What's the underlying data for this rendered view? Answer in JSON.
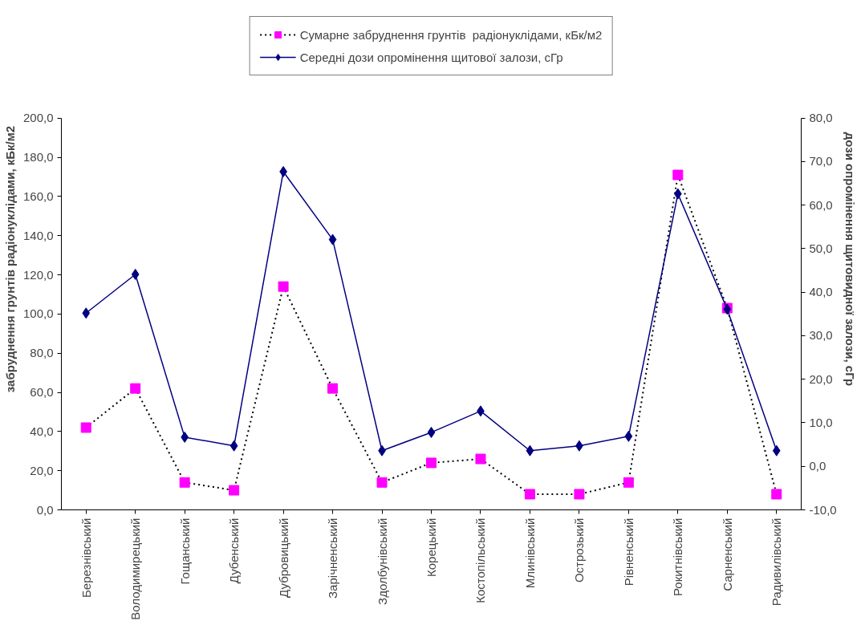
{
  "chart_data": {
    "type": "line",
    "ylabel": "забруднення грунтів радіонуклідами, кБк/м2",
    "y2label": "дози опромінення щитовидної залози, сГр",
    "categories": [
      "Березнівський",
      "Володимирецький",
      "Гощанський",
      "Дубенський",
      "Дубровицький",
      "Зарічненський",
      "Здолбунівський",
      "Корецький",
      "Костопільський",
      "Млинівський",
      "Острозький",
      "Рівненський",
      "Рокитнівський",
      "Сарненський",
      "Радивилівський"
    ],
    "series": [
      {
        "name": "Сумарне забруднення грунтів  радіонуклідами, кБк/м2",
        "color": "#ff00ff",
        "marker": "square",
        "line_style": "dotted",
        "values": [
          42,
          62,
          14,
          10,
          114,
          62,
          14,
          24,
          26,
          8,
          8,
          14,
          171,
          103,
          8
        ]
      },
      {
        "name": "Середні дози опромінення щитової залози, сГр",
        "color": "#000080",
        "marker": "diamond",
        "line_style": "solid",
        "axis": "y2",
        "values": [
          35.2,
          44.1,
          6.7,
          4.7,
          67.7,
          52.1,
          3.6,
          7.8,
          12.7,
          3.6,
          4.7,
          6.9,
          62.6,
          36.1,
          3.6
        ]
      }
    ],
    "ylim": [
      0,
      200
    ],
    "yticks": [
      {
        "value": 0,
        "label": "0,0"
      },
      {
        "value": 20,
        "label": "20,0"
      },
      {
        "value": 40,
        "label": "40,0"
      },
      {
        "value": 60,
        "label": "60,0"
      },
      {
        "value": 80,
        "label": "80,0"
      },
      {
        "value": 100,
        "label": "100,0"
      },
      {
        "value": 120,
        "label": "120,0"
      },
      {
        "value": 140,
        "label": "140,0"
      },
      {
        "value": 160,
        "label": "160,0"
      },
      {
        "value": 180,
        "label": "180,0"
      },
      {
        "value": 200,
        "label": "200,0"
      }
    ],
    "y2lim": [
      -10,
      80
    ],
    "y2ticks": [
      {
        "value": -10,
        "label": "-10,0"
      },
      {
        "value": 0,
        "label": "0,0"
      },
      {
        "value": 10,
        "label": "10,0"
      },
      {
        "value": 20,
        "label": "20,0"
      },
      {
        "value": 30,
        "label": "30,0"
      },
      {
        "value": 40,
        "label": "40,0"
      },
      {
        "value": 50,
        "label": "50,0"
      },
      {
        "value": 60,
        "label": "60,0"
      },
      {
        "value": 70,
        "label": "70,0"
      },
      {
        "value": 80,
        "label": "80,0"
      }
    ],
    "grid": false,
    "legend": "top"
  }
}
